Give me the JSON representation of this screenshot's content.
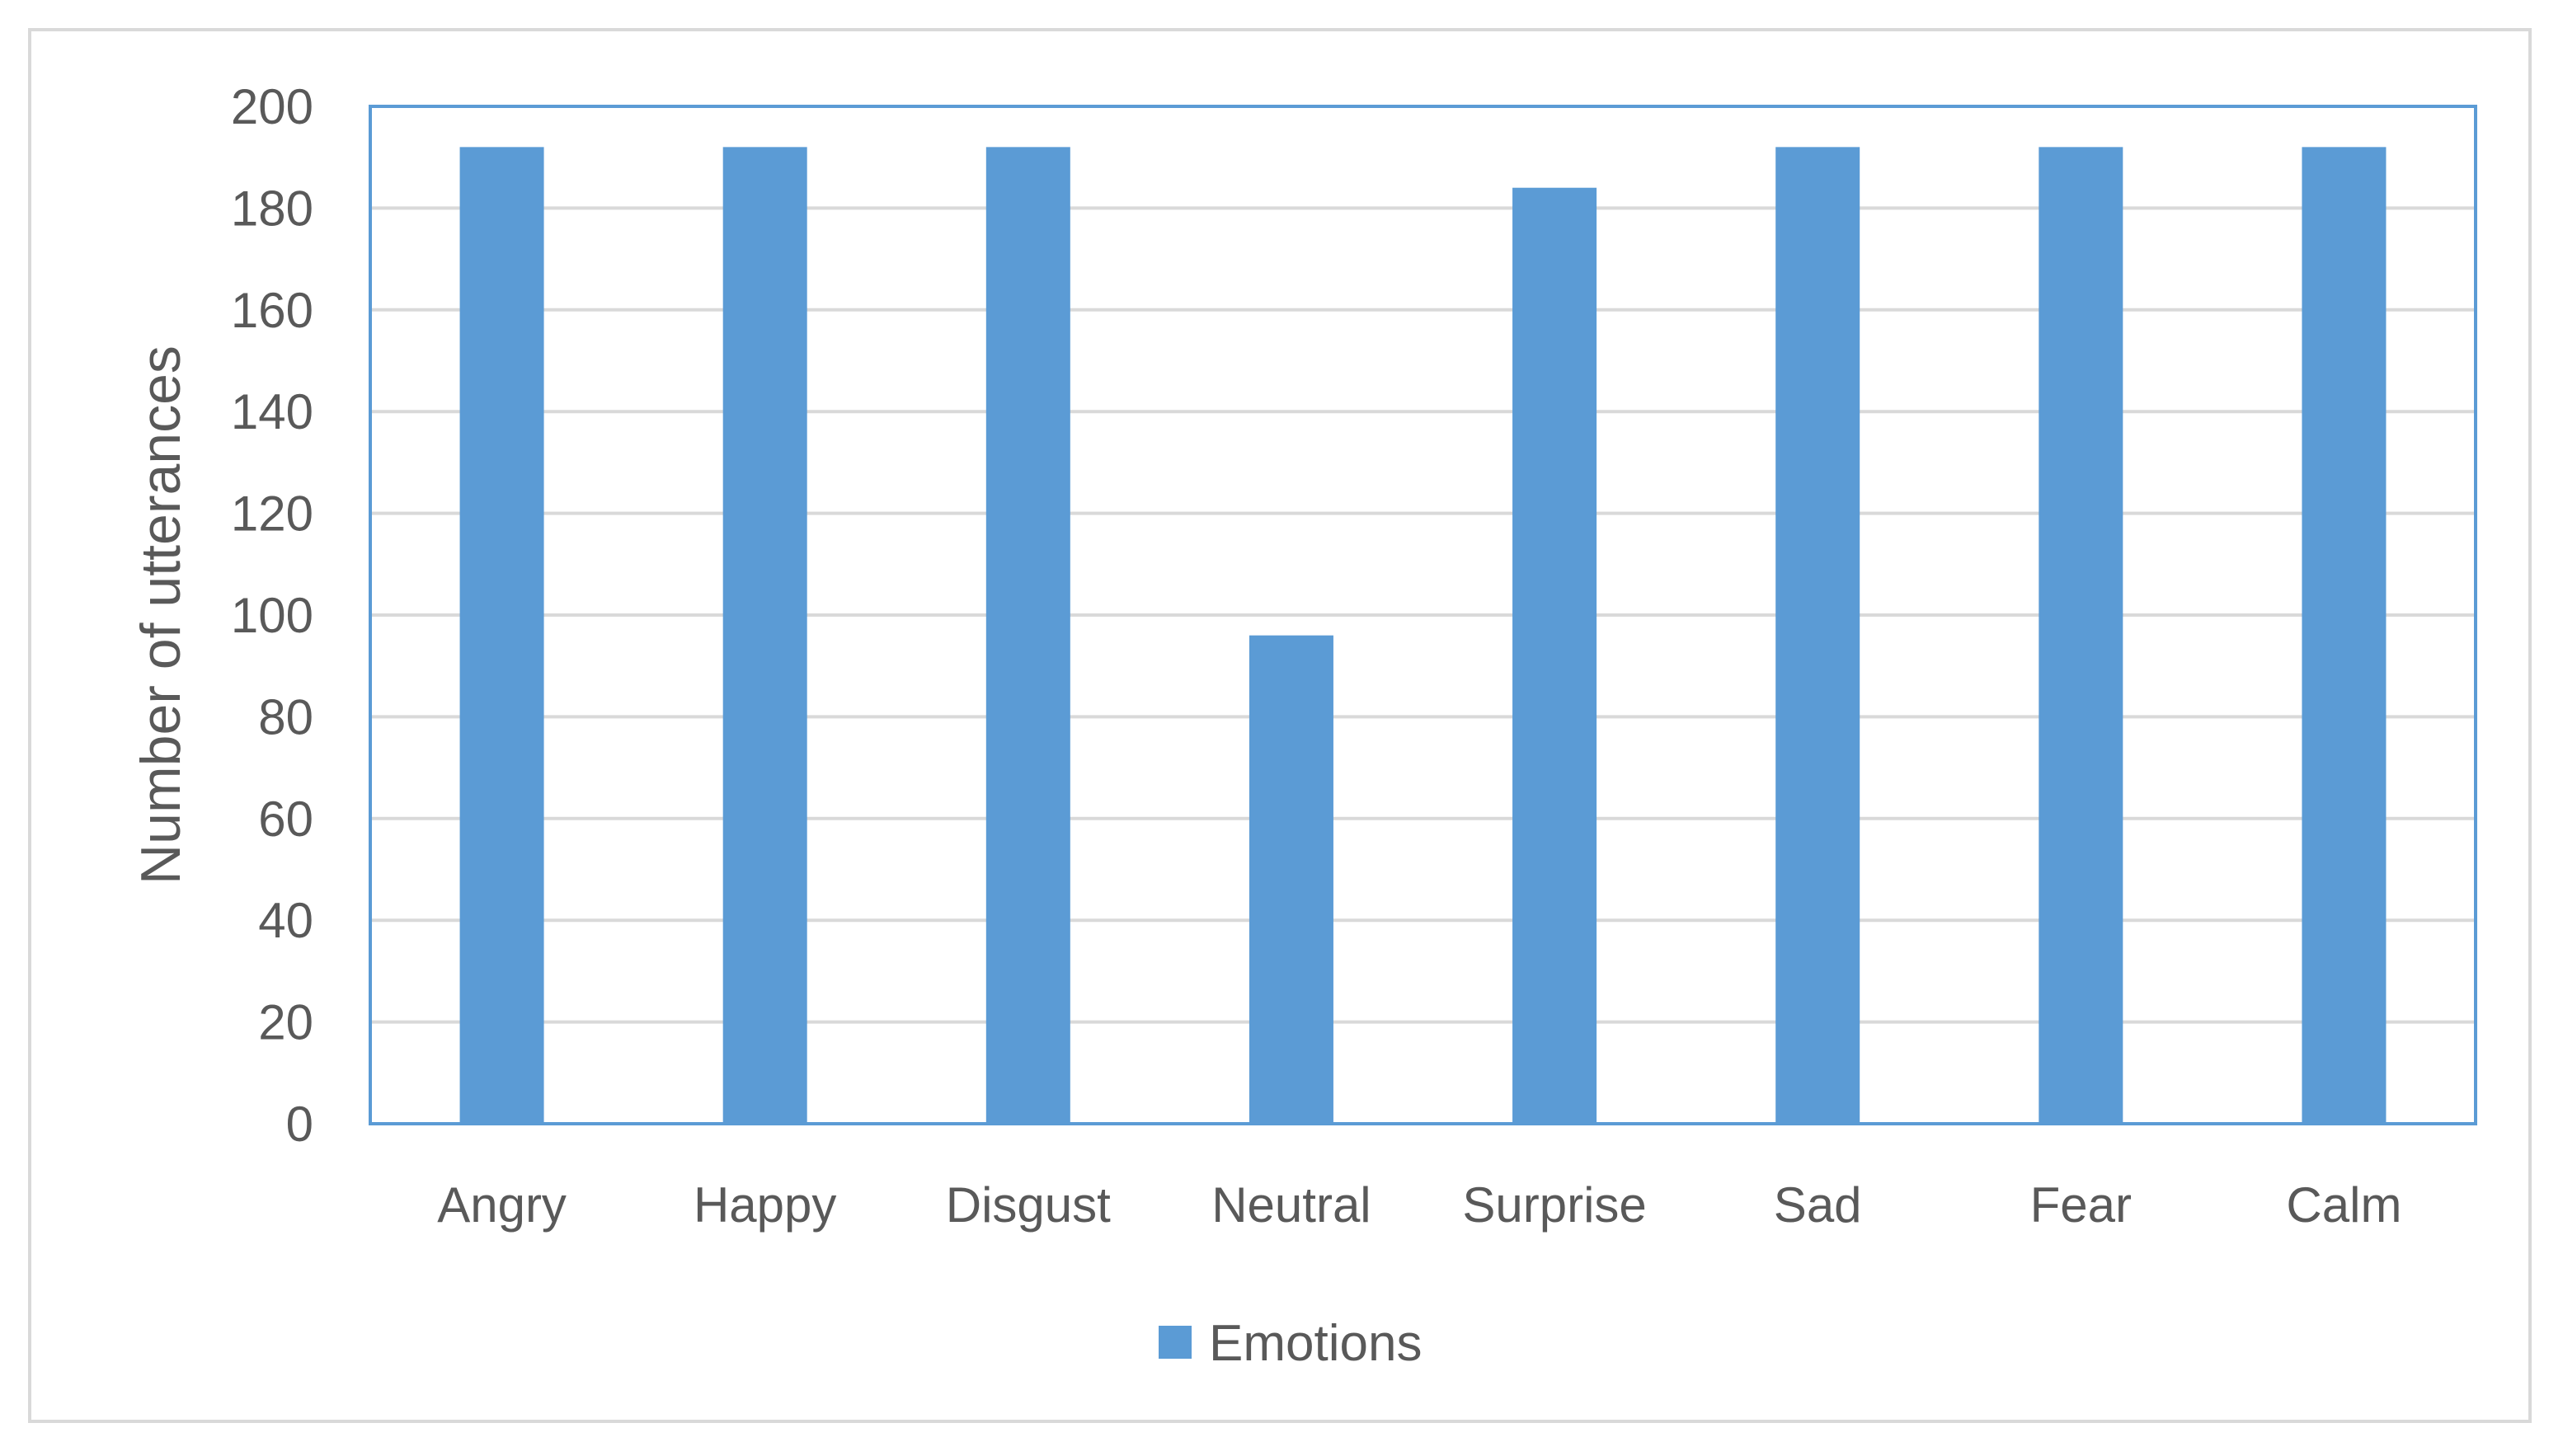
{
  "chart_data": {
    "type": "bar",
    "title": "",
    "xlabel": "",
    "ylabel": "Number of utterances",
    "categories": [
      "Angry",
      "Happy",
      "Disgust",
      "Neutral",
      "Surprise",
      "Sad",
      "Fear",
      "Calm"
    ],
    "series": [
      {
        "name": "Emotions",
        "color": "#5b9bd5",
        "values": [
          192,
          192,
          192,
          96,
          184,
          192,
          192,
          192
        ]
      }
    ],
    "ylim": [
      0,
      200
    ],
    "yticks": [
      0,
      20,
      40,
      60,
      80,
      100,
      120,
      140,
      160,
      180,
      200
    ],
    "grid": true,
    "legend_position": "bottom",
    "colors": {
      "bar": "#5b9bd5",
      "plot_border": "#5b9bd5",
      "gridline": "#d9d9d9",
      "text": "#595959"
    }
  }
}
